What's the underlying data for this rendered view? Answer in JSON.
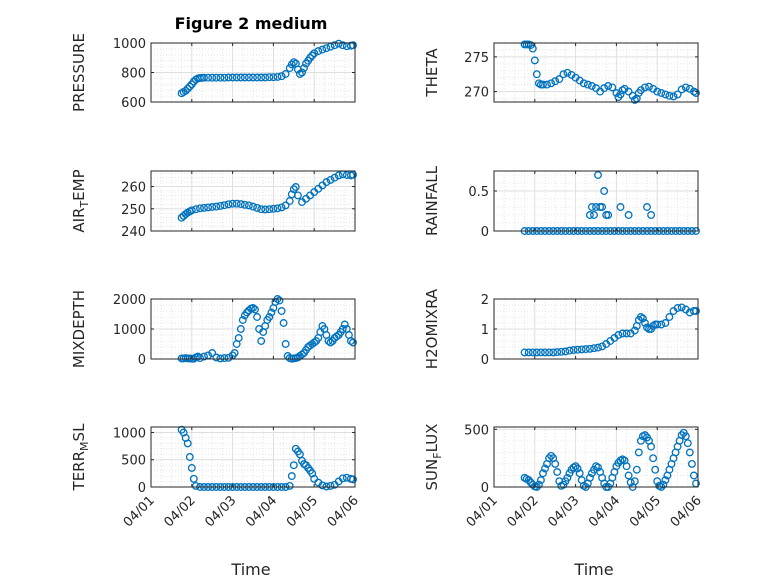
{
  "figure": {
    "title": "Figure 2 medium",
    "xlabel": "Time",
    "x_tick_labels": [
      "04/01",
      "04/02",
      "04/03",
      "04/04",
      "04/05",
      "04/06"
    ],
    "marker_color": "#0072BD",
    "grid_color": "#dfdfdf",
    "axis_color": "#262626"
  },
  "chart_data": [
    {
      "type": "scatter",
      "ylabel": "PRESSURE",
      "title": "Figure 2 medium",
      "xlabel": "",
      "xlim": [
        0,
        5
      ],
      "ylim": [
        600,
        1000
      ],
      "yticks": [
        600,
        800,
        1000
      ],
      "x_tick_labels": [
        "04/01",
        "04/02",
        "04/03",
        "04/04",
        "04/05",
        "04/06"
      ],
      "grid": true,
      "x": [
        0.75,
        0.8,
        0.85,
        0.9,
        0.95,
        1.0,
        1.05,
        1.1,
        1.15,
        1.2,
        1.25,
        1.3,
        1.4,
        1.5,
        1.6,
        1.7,
        1.8,
        1.9,
        2.0,
        2.1,
        2.2,
        2.3,
        2.4,
        2.5,
        2.6,
        2.7,
        2.8,
        2.9,
        3.0,
        3.1,
        3.2,
        3.3,
        3.4,
        3.45,
        3.5,
        3.55,
        3.6,
        3.65,
        3.7,
        3.75,
        3.8,
        3.85,
        3.9,
        3.95,
        4.0,
        4.1,
        4.2,
        4.3,
        4.4,
        4.5,
        4.6,
        4.7,
        4.8,
        4.9,
        4.95
      ],
      "y": [
        660,
        668,
        676,
        690,
        705,
        720,
        738,
        752,
        760,
        763,
        764,
        765,
        765,
        765,
        765,
        765,
        765,
        766,
        766,
        766,
        766,
        766,
        766,
        766,
        766,
        766,
        766,
        768,
        768,
        770,
        775,
        790,
        830,
        855,
        870,
        860,
        820,
        790,
        800,
        830,
        860,
        880,
        900,
        915,
        930,
        945,
        955,
        965,
        975,
        985,
        995,
        985,
        978,
        982,
        985
      ]
    },
    {
      "type": "scatter",
      "ylabel": "THETA",
      "title": "",
      "xlabel": "",
      "xlim": [
        0,
        5
      ],
      "ylim": [
        268.5,
        277
      ],
      "yticks": [
        270,
        275
      ],
      "x_tick_labels": [
        "04/01",
        "04/02",
        "04/03",
        "04/04",
        "04/05",
        "04/06"
      ],
      "grid": true,
      "x": [
        0.75,
        0.8,
        0.85,
        0.9,
        0.95,
        1.0,
        1.05,
        1.1,
        1.15,
        1.2,
        1.3,
        1.4,
        1.5,
        1.6,
        1.7,
        1.8,
        1.9,
        2.0,
        2.1,
        2.2,
        2.3,
        2.4,
        2.5,
        2.6,
        2.7,
        2.8,
        2.9,
        3.0,
        3.05,
        3.1,
        3.15,
        3.2,
        3.3,
        3.4,
        3.45,
        3.5,
        3.55,
        3.6,
        3.7,
        3.8,
        3.9,
        4.0,
        4.1,
        4.2,
        4.3,
        4.4,
        4.5,
        4.6,
        4.7,
        4.8,
        4.9,
        4.95
      ],
      "y": [
        276.8,
        276.8,
        276.8,
        276.7,
        276.2,
        274.5,
        272.5,
        271.2,
        271.0,
        271.0,
        271.0,
        271.2,
        271.5,
        271.8,
        272.5,
        272.7,
        272.4,
        272.0,
        271.6,
        271.2,
        271.0,
        270.8,
        270.5,
        270.0,
        270.5,
        270.8,
        270.6,
        269.8,
        269.2,
        269.6,
        270.2,
        270.4,
        270.0,
        269.4,
        268.8,
        269.0,
        269.8,
        270.2,
        270.6,
        270.7,
        270.4,
        270.0,
        269.8,
        269.6,
        269.4,
        269.3,
        269.6,
        270.3,
        270.6,
        270.4,
        270.0,
        269.8
      ]
    },
    {
      "type": "scatter",
      "ylabel": "AIR_TEMP",
      "title": "",
      "xlabel": "",
      "xlim": [
        0,
        5
      ],
      "ylim": [
        240,
        267
      ],
      "yticks": [
        240,
        250,
        260
      ],
      "x_tick_labels": [
        "04/01",
        "04/02",
        "04/03",
        "04/04",
        "04/05",
        "04/06"
      ],
      "grid": true,
      "x": [
        0.75,
        0.8,
        0.85,
        0.9,
        0.95,
        1.0,
        1.1,
        1.2,
        1.3,
        1.4,
        1.5,
        1.6,
        1.7,
        1.8,
        1.9,
        2.0,
        2.1,
        2.2,
        2.3,
        2.4,
        2.5,
        2.6,
        2.7,
        2.8,
        2.9,
        3.0,
        3.1,
        3.2,
        3.3,
        3.4,
        3.45,
        3.5,
        3.55,
        3.6,
        3.7,
        3.8,
        3.9,
        4.0,
        4.1,
        4.2,
        4.3,
        4.4,
        4.5,
        4.6,
        4.7,
        4.8,
        4.9,
        4.95
      ],
      "y": [
        246,
        246.8,
        247.6,
        248.3,
        248.8,
        249.3,
        249.8,
        250.2,
        250.4,
        250.6,
        250.8,
        251.0,
        251.3,
        251.6,
        252.0,
        252.3,
        252.3,
        252.1,
        251.8,
        251.5,
        251.0,
        250.4,
        249.8,
        249.7,
        249.8,
        250.0,
        250.2,
        250.6,
        251.5,
        253.5,
        256.5,
        258.8,
        259.8,
        256.0,
        253.0,
        254.5,
        256.0,
        257.5,
        259.0,
        260.5,
        262.0,
        263.0,
        264.0,
        265.0,
        265.5,
        265.2,
        265.0,
        265.3
      ]
    },
    {
      "type": "scatter",
      "ylabel": "RAINFALL",
      "title": "",
      "xlabel": "",
      "xlim": [
        0,
        5
      ],
      "ylim": [
        0,
        0.75
      ],
      "yticks": [
        0,
        0.5
      ],
      "x_tick_labels": [
        "04/01",
        "04/02",
        "04/03",
        "04/04",
        "04/05",
        "04/06"
      ],
      "grid": true,
      "x": [
        0.75,
        0.85,
        0.95,
        1.05,
        1.15,
        1.25,
        1.35,
        1.45,
        1.55,
        1.65,
        1.75,
        1.85,
        1.95,
        2.05,
        2.15,
        2.25,
        2.35,
        2.45,
        2.55,
        2.65,
        2.75,
        2.85,
        2.95,
        3.05,
        3.15,
        3.25,
        3.35,
        3.45,
        3.55,
        3.65,
        3.75,
        3.85,
        3.95,
        4.05,
        4.15,
        4.25,
        4.35,
        4.45,
        4.55,
        4.65,
        4.75,
        4.85,
        4.95,
        2.35,
        2.4,
        2.45,
        2.5,
        2.55,
        2.6,
        2.65,
        2.7,
        2.75,
        2.8,
        3.1,
        3.3,
        3.75,
        3.85
      ],
      "y": [
        0,
        0,
        0,
        0,
        0,
        0,
        0,
        0,
        0,
        0,
        0,
        0,
        0,
        0,
        0,
        0,
        0,
        0,
        0,
        0,
        0,
        0,
        0,
        0,
        0,
        0,
        0,
        0,
        0,
        0,
        0,
        0,
        0,
        0,
        0,
        0,
        0,
        0,
        0,
        0,
        0,
        0,
        0,
        0.2,
        0.3,
        0.2,
        0.3,
        0.7,
        0.3,
        0.3,
        0.5,
        0.2,
        0.2,
        0.3,
        0.2,
        0.3,
        0.2
      ]
    },
    {
      "type": "scatter",
      "ylabel": "MIXDEPTH",
      "title": "",
      "xlabel": "",
      "xlim": [
        0,
        5
      ],
      "ylim": [
        0,
        2000
      ],
      "yticks": [
        0,
        1000,
        2000
      ],
      "x_tick_labels": [
        "04/01",
        "04/02",
        "04/03",
        "04/04",
        "04/05",
        "04/06"
      ],
      "grid": true,
      "x": [
        0.75,
        0.8,
        0.85,
        0.9,
        0.95,
        1.0,
        1.05,
        1.1,
        1.15,
        1.2,
        1.3,
        1.4,
        1.5,
        1.6,
        1.7,
        1.8,
        1.9,
        2.0,
        2.05,
        2.1,
        2.15,
        2.2,
        2.25,
        2.3,
        2.35,
        2.4,
        2.45,
        2.5,
        2.55,
        2.6,
        2.65,
        2.7,
        2.75,
        2.8,
        2.85,
        2.9,
        2.95,
        3.0,
        3.05,
        3.1,
        3.15,
        3.2,
        3.25,
        3.3,
        3.35,
        3.4,
        3.45,
        3.5,
        3.55,
        3.6,
        3.65,
        3.7,
        3.75,
        3.8,
        3.85,
        3.9,
        3.95,
        4.0,
        4.05,
        4.1,
        4.15,
        4.2,
        4.25,
        4.3,
        4.35,
        4.4,
        4.45,
        4.5,
        4.55,
        4.6,
        4.65,
        4.7,
        4.75,
        4.8,
        4.85,
        4.9,
        4.95
      ],
      "y": [
        20,
        20,
        30,
        20,
        20,
        10,
        10,
        50,
        80,
        30,
        80,
        120,
        200,
        50,
        20,
        30,
        40,
        120,
        200,
        500,
        700,
        1000,
        1300,
        1450,
        1550,
        1620,
        1680,
        1700,
        1650,
        1400,
        1000,
        600,
        900,
        1100,
        1300,
        1400,
        1550,
        1700,
        1900,
        2000,
        1950,
        1600,
        1200,
        500,
        100,
        30,
        10,
        20,
        30,
        50,
        100,
        150,
        200,
        300,
        400,
        450,
        500,
        550,
        600,
        700,
        900,
        1100,
        1000,
        800,
        600,
        550,
        600,
        700,
        750,
        800,
        900,
        1000,
        1150,
        1000,
        800,
        600,
        550
      ]
    },
    {
      "type": "scatter",
      "ylabel": "H2OMIXRA",
      "title": "",
      "xlabel": "",
      "xlim": [
        0,
        5
      ],
      "ylim": [
        0,
        2
      ],
      "yticks": [
        0,
        1,
        2
      ],
      "x_tick_labels": [
        "04/01",
        "04/02",
        "04/03",
        "04/04",
        "04/05",
        "04/06"
      ],
      "grid": true,
      "x": [
        0.75,
        0.85,
        0.95,
        1.05,
        1.15,
        1.25,
        1.35,
        1.45,
        1.55,
        1.65,
        1.75,
        1.85,
        1.95,
        2.05,
        2.15,
        2.25,
        2.35,
        2.45,
        2.55,
        2.65,
        2.75,
        2.85,
        2.95,
        3.05,
        3.15,
        3.25,
        3.35,
        3.45,
        3.5,
        3.55,
        3.6,
        3.65,
        3.7,
        3.75,
        3.8,
        3.85,
        3.9,
        3.95,
        4.0,
        4.1,
        4.2,
        4.3,
        4.4,
        4.5,
        4.6,
        4.7,
        4.8,
        4.9,
        4.95
      ],
      "y": [
        0.22,
        0.22,
        0.22,
        0.22,
        0.22,
        0.22,
        0.22,
        0.22,
        0.23,
        0.24,
        0.25,
        0.28,
        0.3,
        0.31,
        0.32,
        0.33,
        0.34,
        0.36,
        0.38,
        0.42,
        0.5,
        0.6,
        0.7,
        0.8,
        0.85,
        0.85,
        0.85,
        0.95,
        1.1,
        1.3,
        1.4,
        1.35,
        1.2,
        1.05,
        1.0,
        1.0,
        1.1,
        1.15,
        1.15,
        1.15,
        1.2,
        1.4,
        1.6,
        1.7,
        1.72,
        1.65,
        1.55,
        1.6,
        1.6
      ]
    },
    {
      "type": "scatter",
      "ylabel": "TERR_MSL",
      "title": "",
      "xlabel": "",
      "xlim": [
        0,
        5
      ],
      "ylim": [
        0,
        1100
      ],
      "yticks": [
        0,
        500,
        1000
      ],
      "x_tick_labels": [
        "04/01",
        "04/02",
        "04/03",
        "04/04",
        "04/05",
        "04/06"
      ],
      "grid": true,
      "x": [
        0.75,
        0.8,
        0.85,
        0.9,
        0.95,
        1.0,
        1.05,
        1.1,
        1.2,
        1.3,
        1.4,
        1.5,
        1.6,
        1.7,
        1.8,
        1.9,
        2.0,
        2.1,
        2.2,
        2.3,
        2.4,
        2.5,
        2.6,
        2.7,
        2.8,
        2.9,
        3.0,
        3.1,
        3.2,
        3.3,
        3.4,
        3.45,
        3.5,
        3.55,
        3.6,
        3.65,
        3.7,
        3.75,
        3.8,
        3.85,
        3.9,
        3.95,
        4.0,
        4.1,
        4.2,
        4.3,
        4.4,
        4.5,
        4.6,
        4.7,
        4.8,
        4.9,
        4.95
      ],
      "y": [
        1050,
        1000,
        900,
        800,
        550,
        350,
        150,
        20,
        0,
        0,
        0,
        0,
        0,
        0,
        0,
        0,
        0,
        0,
        0,
        0,
        0,
        0,
        0,
        0,
        0,
        0,
        0,
        0,
        0,
        0,
        20,
        200,
        400,
        700,
        650,
        600,
        480,
        420,
        400,
        350,
        300,
        250,
        150,
        80,
        30,
        10,
        20,
        40,
        100,
        160,
        170,
        150,
        140
      ]
    },
    {
      "type": "scatter",
      "ylabel": "SUN_FLUX",
      "title": "",
      "xlabel": "",
      "xlim": [
        0,
        5
      ],
      "ylim": [
        0,
        520
      ],
      "yticks": [
        0,
        500
      ],
      "x_tick_labels": [
        "04/01",
        "04/02",
        "04/03",
        "04/04",
        "04/05",
        "04/06"
      ],
      "grid": true,
      "x": [
        0.75,
        0.8,
        0.85,
        0.9,
        0.95,
        1.0,
        1.05,
        1.1,
        1.15,
        1.2,
        1.25,
        1.3,
        1.35,
        1.4,
        1.45,
        1.5,
        1.55,
        1.6,
        1.65,
        1.7,
        1.75,
        1.8,
        1.85,
        1.9,
        1.95,
        2.0,
        2.05,
        2.1,
        2.15,
        2.2,
        2.25,
        2.3,
        2.35,
        2.4,
        2.45,
        2.5,
        2.55,
        2.6,
        2.65,
        2.7,
        2.75,
        2.8,
        2.85,
        2.9,
        2.95,
        3.0,
        3.05,
        3.1,
        3.15,
        3.2,
        3.25,
        3.3,
        3.35,
        3.4,
        3.45,
        3.5,
        3.55,
        3.6,
        3.65,
        3.7,
        3.75,
        3.8,
        3.85,
        3.9,
        3.95,
        4.0,
        4.05,
        4.1,
        4.15,
        4.2,
        4.25,
        4.3,
        4.35,
        4.4,
        4.45,
        4.5,
        4.55,
        4.6,
        4.65,
        4.7,
        4.75,
        4.8,
        4.85,
        4.9,
        4.95
      ],
      "y": [
        80,
        70,
        60,
        40,
        20,
        5,
        0,
        20,
        60,
        120,
        160,
        200,
        250,
        270,
        250,
        200,
        130,
        50,
        10,
        20,
        50,
        80,
        120,
        150,
        170,
        180,
        160,
        120,
        60,
        10,
        0,
        30,
        80,
        120,
        150,
        180,
        170,
        130,
        80,
        30,
        0,
        0,
        30,
        80,
        130,
        180,
        210,
        230,
        240,
        230,
        180,
        100,
        40,
        0,
        50,
        150,
        300,
        400,
        440,
        450,
        430,
        400,
        350,
        250,
        150,
        50,
        10,
        0,
        20,
        60,
        100,
        150,
        200,
        250,
        300,
        350,
        400,
        450,
        470,
        440,
        380,
        300,
        200,
        100,
        30
      ]
    }
  ]
}
